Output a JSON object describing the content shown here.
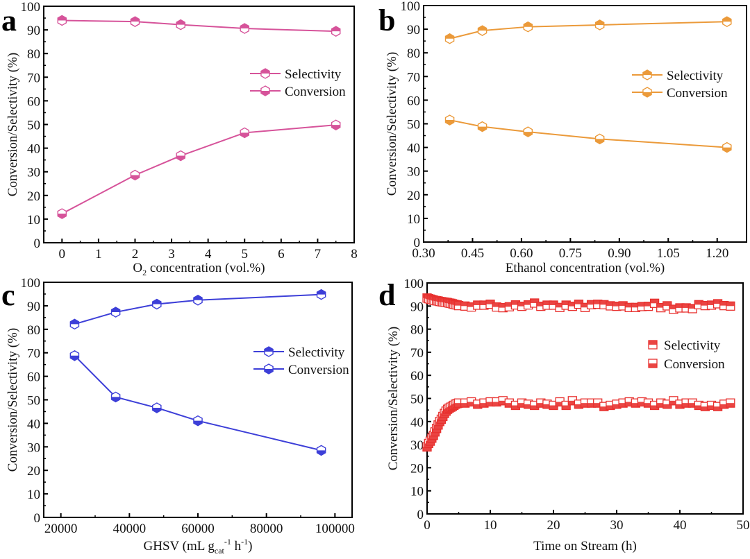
{
  "chart_data": [
    {
      "panel": "a",
      "type": "line",
      "title": "",
      "xlabel": "O2 concentration (vol.%)",
      "xlabel_parts": [
        "O",
        "2",
        " concentration (vol.%)"
      ],
      "ylabel": "Conversion/Selectivity (%)",
      "xlim": [
        -0.5,
        8
      ],
      "ylim": [
        0,
        100
      ],
      "xticks": [
        0,
        1,
        2,
        3,
        4,
        5,
        6,
        7,
        8
      ],
      "yticks": [
        0,
        10,
        20,
        30,
        40,
        50,
        60,
        70,
        80,
        90,
        100
      ],
      "color": "#d6539a",
      "marker": "hexagon-half",
      "legend": "right-middle",
      "x": [
        0,
        2,
        3.25,
        5,
        7.5
      ],
      "series": [
        {
          "name": "Selectivity",
          "values": [
            94.0,
            93.5,
            92.2,
            90.6,
            89.4
          ]
        },
        {
          "name": "Conversion",
          "values": [
            12.3,
            28.6,
            36.8,
            46.5,
            49.8
          ]
        }
      ]
    },
    {
      "panel": "b",
      "type": "line",
      "title": "",
      "xlabel": "Ethanol concentration (vol.%)",
      "ylabel": "Conversion/Selectivity (%)",
      "xlim": [
        0.3,
        1.29
      ],
      "ylim": [
        0,
        100
      ],
      "xticks": [
        0.3,
        0.45,
        0.6,
        0.75,
        0.9,
        1.05,
        1.2
      ],
      "xtick_labels": [
        "0.30",
        "0.45",
        "0.60",
        "0.75",
        "0.90",
        "1.05",
        "1.20"
      ],
      "yticks": [
        0,
        10,
        20,
        30,
        40,
        50,
        60,
        70,
        80,
        90,
        100
      ],
      "color": "#eb9a3a",
      "marker": "hexagon-half",
      "legend": "right-middle",
      "x": [
        0.38,
        0.48,
        0.62,
        0.84,
        1.23
      ],
      "series": [
        {
          "name": "Selectivity",
          "values": [
            86.0,
            89.4,
            91.0,
            91.8,
            93.2
          ]
        },
        {
          "name": "Conversion",
          "values": [
            51.6,
            48.8,
            46.6,
            43.6,
            40.0
          ]
        }
      ]
    },
    {
      "panel": "c",
      "type": "line",
      "title": "",
      "xlabel": "GHSV (mL gcat-1 h-1)",
      "xlabel_parts": [
        "GHSV (mL g",
        "cat",
        "-1",
        " h",
        "-1",
        ")"
      ],
      "ylabel": "Conversion/Selectivity (%)",
      "xlim": [
        15000,
        105000
      ],
      "ylim": [
        0,
        100
      ],
      "xticks": [
        20000,
        40000,
        60000,
        80000,
        100000
      ],
      "yticks": [
        0,
        10,
        20,
        30,
        40,
        50,
        60,
        70,
        80,
        90,
        100
      ],
      "color": "#3d3fd8",
      "marker": "hexagon-half",
      "legend": "right-middle",
      "x": [
        24000,
        36000,
        48000,
        60000,
        96000
      ],
      "series": [
        {
          "name": "Selectivity",
          "values": [
            82.2,
            87.3,
            90.7,
            92.4,
            94.8
          ]
        },
        {
          "name": "Conversion",
          "values": [
            68.8,
            51.2,
            46.6,
            41.1,
            28.5
          ]
        }
      ]
    },
    {
      "panel": "d",
      "type": "scatter",
      "title": "",
      "xlabel": "Time on Stream (h)",
      "ylabel": "Conversion/Selectivity (%)",
      "xlim": [
        0,
        50
      ],
      "ylim": [
        0,
        100
      ],
      "xticks": [
        0,
        10,
        20,
        30,
        40,
        50
      ],
      "yticks": [
        0,
        10,
        20,
        30,
        40,
        50,
        60,
        70,
        80,
        90,
        100
      ],
      "color": "#e8312f",
      "marker": "square-half",
      "legend": "right-middle",
      "x": [
        0,
        0.25,
        0.5,
        0.75,
        1,
        1.25,
        1.5,
        1.75,
        2,
        2.25,
        2.5,
        2.75,
        3,
        3.25,
        3.5,
        3.75,
        4,
        4.25,
        4.5,
        4.75,
        5,
        6,
        7,
        8,
        9,
        10,
        11,
        12,
        13,
        14,
        15,
        16,
        17,
        18,
        19,
        20,
        21,
        22,
        23,
        24,
        25,
        26,
        27,
        28,
        29,
        30,
        31,
        32,
        33,
        34,
        35,
        36,
        37,
        38,
        39,
        40,
        41,
        42,
        43,
        44,
        45,
        46,
        47,
        48
      ],
      "series": [
        {
          "name": "Selectivity",
          "values": [
            93.5,
            93.2,
            93.0,
            92.8,
            92.6,
            92.4,
            92.3,
            92.2,
            92.0,
            91.9,
            91.8,
            91.7,
            91.6,
            91.5,
            91.3,
            91.2,
            91.0,
            90.8,
            90.6,
            90.5,
            90.2,
            90.0,
            89.6,
            90.4,
            90.4,
            90.8,
            89.6,
            89.3,
            89.7,
            90.5,
            89.9,
            90.5,
            91.3,
            89.9,
            90.4,
            90.4,
            89.4,
            90.4,
            89.9,
            90.8,
            89.4,
            90.6,
            90.8,
            90.6,
            90.1,
            89.9,
            90.1,
            89.4,
            89.4,
            89.8,
            89.9,
            91.2,
            89.3,
            90.1,
            88.6,
            89.2,
            89.2,
            88.9,
            90.6,
            90.2,
            90.4,
            91.0,
            90.2,
            90.0
          ]
        },
        {
          "name": "Conversion",
          "values": [
            29.0,
            30.5,
            31.5,
            32.8,
            34.0,
            35.5,
            37.0,
            38.5,
            40.0,
            41.0,
            42.2,
            43.5,
            44.5,
            45.3,
            45.8,
            46.2,
            46.6,
            47.0,
            47.5,
            47.8,
            48.0,
            48.0,
            48.5,
            47.5,
            48.0,
            48.5,
            48.5,
            49.0,
            48.0,
            47.0,
            48.0,
            47.5,
            47.0,
            48.0,
            47.5,
            47.0,
            48.5,
            47.0,
            49.0,
            47.5,
            48.0,
            48.0,
            48.0,
            46.5,
            47.0,
            47.5,
            48.0,
            48.5,
            48.0,
            48.5,
            48.0,
            47.0,
            48.0,
            47.5,
            49.0,
            47.5,
            48.0,
            48.0,
            47.0,
            46.5,
            47.0,
            46.5,
            47.5,
            48.0
          ]
        }
      ]
    }
  ]
}
